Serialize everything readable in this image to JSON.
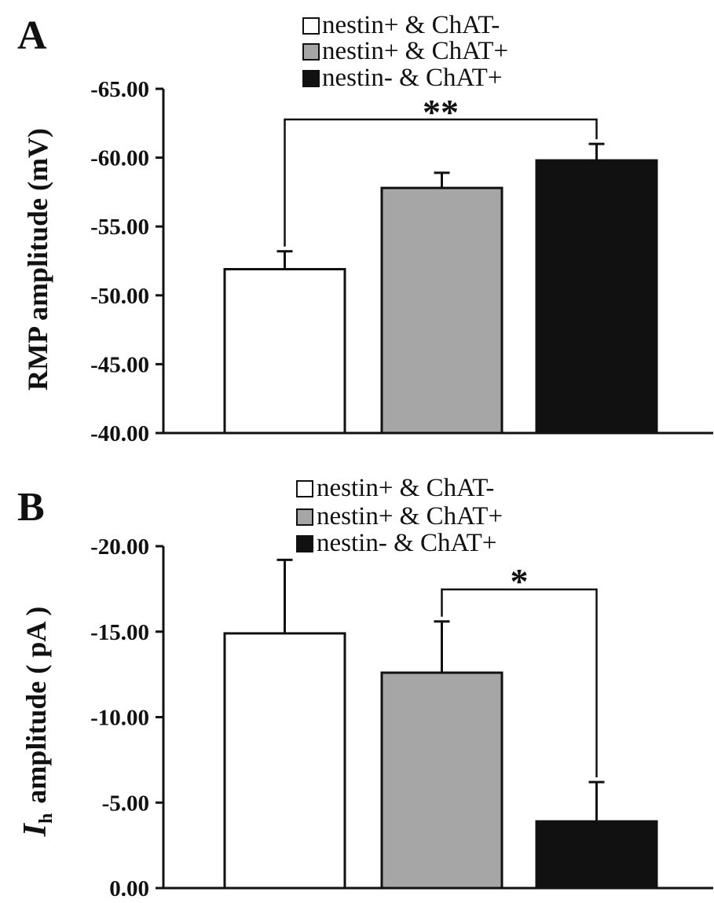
{
  "chart_data": [
    {
      "type": "bar",
      "panel_label": "A",
      "ylabel": "RMP amplitude (mV)",
      "ylim": [
        -40,
        -65
      ],
      "yticks": [
        "-40.00",
        "-45.00",
        "-50.00",
        "-55.00",
        "-60.00",
        "-65.00"
      ],
      "categories": [
        "nestin+ & ChAT-",
        "nestin+ & ChAT+",
        "nestin- & ChAT+"
      ],
      "values": [
        -51.9,
        -57.8,
        -59.8
      ],
      "errors": [
        1.3,
        1.1,
        1.2
      ],
      "colors": [
        "#ffffff",
        "#a6a6a6",
        "#111111"
      ],
      "legend_position": "top-center",
      "significance": [
        {
          "from": 0,
          "to": 2,
          "label": "**"
        }
      ]
    },
    {
      "type": "bar",
      "panel_label": "B",
      "ylabel_italic": "I",
      "ylabel_sub": "h",
      "ylabel_rest": "amplitude ( pA )",
      "ylim": [
        0,
        -20
      ],
      "yticks": [
        "0.00",
        "-5.00",
        "-10.00",
        "-15.00",
        "-20.00"
      ],
      "categories": [
        "nestin+ & ChAT-",
        "nestin+ & ChAT+",
        "nestin- & ChAT+"
      ],
      "values": [
        -14.9,
        -12.6,
        -3.9
      ],
      "errors": [
        4.3,
        3.0,
        2.3
      ],
      "colors": [
        "#ffffff",
        "#a6a6a6",
        "#111111"
      ],
      "legend_position": "top-center",
      "significance": [
        {
          "from": 1,
          "to": 2,
          "label": "*"
        }
      ]
    }
  ]
}
